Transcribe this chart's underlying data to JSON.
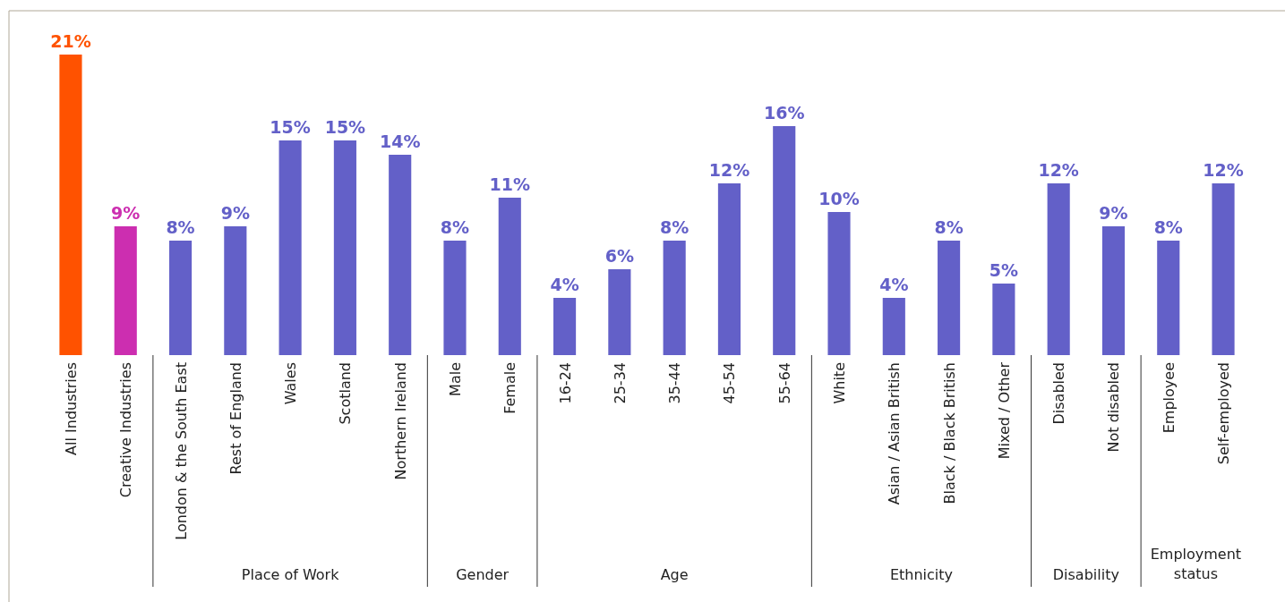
{
  "chart_data": {
    "type": "bar",
    "categories": [
      "All Industries",
      "Creative Industries",
      "London & the South East",
      "Rest of England",
      "Wales",
      "Scotland",
      "Northern Ireland",
      "Male",
      "Female",
      "16-24",
      "25-34",
      "35-44",
      "45-54",
      "55-64",
      "White",
      "Asian / Asian British",
      "Black / Black British",
      "Mixed / Other",
      "Disabled",
      "Not disabled",
      "Employee",
      "Self-employed"
    ],
    "values": [
      21,
      9,
      8,
      9,
      15,
      15,
      14,
      8,
      11,
      4,
      6,
      8,
      12,
      16,
      10,
      4,
      8,
      5,
      12,
      9,
      8,
      12
    ],
    "value_labels": [
      "21%",
      "9%",
      "8%",
      "9%",
      "15%",
      "15%",
      "14%",
      "8%",
      "11%",
      "4%",
      "6%",
      "8%",
      "12%",
      "16%",
      "10%",
      "4%",
      "8%",
      "5%",
      "12%",
      "9%",
      "8%",
      "12%"
    ],
    "colors": [
      "#ff5200",
      "#cc2eb0",
      "#6360c8",
      "#6360c8",
      "#6360c8",
      "#6360c8",
      "#6360c8",
      "#6360c8",
      "#6360c8",
      "#6360c8",
      "#6360c8",
      "#6360c8",
      "#6360c8",
      "#6360c8",
      "#6360c8",
      "#6360c8",
      "#6360c8",
      "#6360c8",
      "#6360c8",
      "#6360c8",
      "#6360c8",
      "#6360c8"
    ],
    "ylim": [
      0,
      21
    ],
    "tick_labels": "x",
    "annotations": [
      "Place of Work",
      "Gender",
      "Age",
      "Ethnicity",
      "Disability",
      "Employment status"
    ]
  }
}
